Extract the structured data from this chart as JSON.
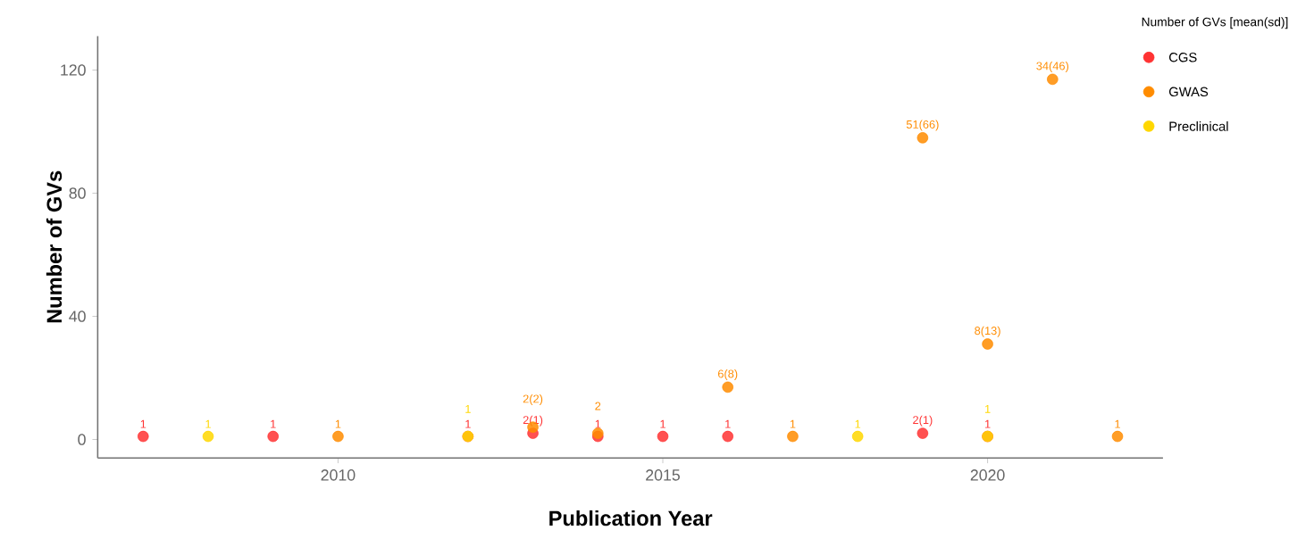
{
  "chart_data": {
    "type": "scatter",
    "xlabel": "Publication Year",
    "ylabel": "Number of GVs",
    "legend_title": "Number of GVs [mean(sd)]",
    "xlim": [
      2006.3,
      2022.7
    ],
    "ylim": [
      -6,
      131
    ],
    "xticks": [
      2010,
      2015,
      2020
    ],
    "yticks": [
      0,
      40,
      80,
      120
    ],
    "grid": false,
    "legend": "top right",
    "marker": "circle",
    "series": [
      {
        "name": "CGS",
        "color": "#ff3333",
        "x": [
          2007,
          2009,
          2012,
          2013,
          2014,
          2015,
          2016,
          2019,
          2020
        ],
        "values": [
          1,
          1,
          1,
          2,
          1,
          1,
          1,
          2,
          1
        ],
        "value_labels": [
          "1",
          "1",
          "1",
          "2(1)",
          "1",
          "1",
          "1",
          "2(1)",
          "1"
        ]
      },
      {
        "name": "GWAS",
        "color": "#ff8c00",
        "x": [
          2010,
          2013,
          2014,
          2016,
          2017,
          2019,
          2020,
          2021,
          2022
        ],
        "values": [
          1,
          4,
          2,
          17,
          1,
          98,
          31,
          117,
          1
        ],
        "value_labels": [
          "1",
          "2(2)",
          "2",
          "6(8)",
          "1",
          "51(66)",
          "8(13)",
          "34(46)",
          "1"
        ]
      },
      {
        "name": "Preclinical",
        "color": "#ffd700",
        "x": [
          2008,
          2012,
          2018,
          2020
        ],
        "values": [
          1,
          1,
          1,
          1
        ],
        "value_labels": [
          "1",
          "1",
          "1",
          "1"
        ]
      }
    ]
  }
}
